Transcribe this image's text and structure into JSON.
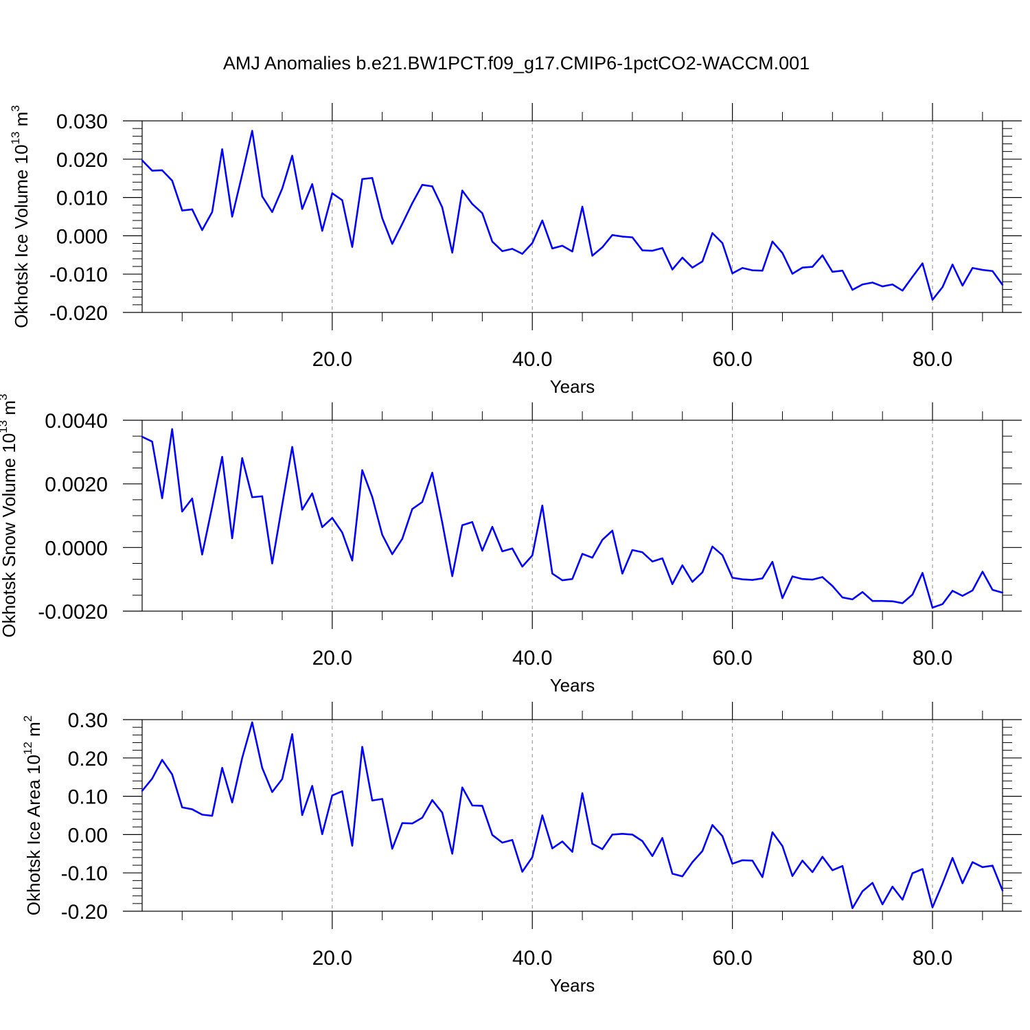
{
  "title": "AMJ Anomalies b.e21.BW1PCT.f09_g17.CMIP6-1pctCO2-WACCM.001",
  "colors": {
    "series": "#0000ff",
    "axis": "#000000",
    "grid": "#888888"
  },
  "chart_data": [
    {
      "type": "line",
      "title": "",
      "xlabel": "Years",
      "ylabel": {
        "text": "Okhotsk Ice Volume 10",
        "exp": "13",
        "unit": " m",
        "unit_exp": "3"
      },
      "xlim": [
        1,
        87
      ],
      "ylim": [
        -0.02,
        0.03
      ],
      "x_ticks": [
        20,
        40,
        60,
        80
      ],
      "x_tick_labels": [
        "20.0",
        "40.0",
        "60.0",
        "80.0"
      ],
      "y_ticks": [
        0.03,
        0.02,
        0.01,
        0.0,
        -0.01,
        -0.02
      ],
      "y_tick_labels": [
        "0.030",
        "0.020",
        "0.010",
        "0.000",
        "-0.010",
        "-0.020"
      ],
      "y_minor_step": 0.002,
      "grid": "vertical dashed at major x ticks",
      "series": [
        {
          "values": [
            0.0197,
            0.017,
            0.0171,
            0.0144,
            0.0066,
            0.0069,
            0.0015,
            0.0062,
            0.0226,
            0.005,
            0.016,
            0.0274,
            0.0103,
            0.0062,
            0.0123,
            0.0209,
            0.007,
            0.0135,
            0.0013,
            0.0111,
            0.0093,
            -0.0029,
            0.0148,
            0.0151,
            0.0046,
            -0.0021,
            0.0031,
            0.0085,
            0.0133,
            0.0129,
            0.0074,
            -0.0044,
            0.0118,
            0.0083,
            0.0059,
            -0.0015,
            -0.004,
            -0.0034,
            -0.0047,
            -0.0019,
            0.004,
            -0.0033,
            -0.0026,
            -0.0041,
            0.0076,
            -0.0052,
            -0.003,
            0.0002,
            -0.0002,
            -0.0004,
            -0.0038,
            -0.0039,
            -0.0032,
            -0.0088,
            -0.0057,
            -0.0083,
            -0.0067,
            0.0007,
            -0.0019,
            -0.0098,
            -0.0084,
            -0.009,
            -0.0091,
            -0.0015,
            -0.0045,
            -0.0099,
            -0.0083,
            -0.0081,
            -0.0051,
            -0.0094,
            -0.0091,
            -0.0141,
            -0.0127,
            -0.0122,
            -0.0132,
            -0.0127,
            -0.0143,
            -0.0107,
            -0.0072,
            -0.0167,
            -0.0134,
            -0.0075,
            -0.013,
            -0.0084,
            -0.0089,
            -0.0092,
            -0.0128
          ]
        }
      ]
    },
    {
      "type": "line",
      "title": "",
      "xlabel": "Years",
      "ylabel": {
        "text": "Okhotsk Snow Volume 10",
        "exp": "13",
        "unit": " m",
        "unit_exp": "3"
      },
      "xlim": [
        1,
        87
      ],
      "ylim": [
        -0.002,
        0.004
      ],
      "x_ticks": [
        20,
        40,
        60,
        80
      ],
      "x_tick_labels": [
        "20.0",
        "40.0",
        "60.0",
        "80.0"
      ],
      "y_ticks": [
        0.004,
        0.002,
        0.0,
        -0.002
      ],
      "y_tick_labels": [
        "0.0040",
        "0.0020",
        "0.0000",
        "-0.0020"
      ],
      "y_minor_step": 0.0005,
      "grid": "vertical dashed at major x ticks",
      "series": [
        {
          "values": [
            0.00348,
            0.00333,
            0.00155,
            0.00372,
            0.00113,
            0.00154,
            -0.00022,
            0.00128,
            0.00285,
            0.00029,
            0.00281,
            0.00158,
            0.00161,
            -0.0005,
            0.00134,
            0.00316,
            0.00119,
            0.0017,
            0.00064,
            0.00093,
            0.00047,
            -0.00041,
            0.00243,
            0.00159,
            0.0004,
            -0.00021,
            0.00027,
            0.00121,
            0.00143,
            0.00235,
            0.00078,
            -0.0009,
            0.0007,
            0.0008,
            -0.0001,
            0.00065,
            -0.00012,
            -3e-05,
            -0.0006,
            -0.00025,
            0.00132,
            -0.00082,
            -0.00103,
            -0.00099,
            -0.0002,
            -0.00032,
            0.00024,
            0.00053,
            -0.00082,
            -8e-05,
            -0.00015,
            -0.00044,
            -0.00034,
            -0.00115,
            -0.00056,
            -0.00108,
            -0.00078,
            3e-05,
            -0.00024,
            -0.00095,
            -0.001,
            -0.00102,
            -0.00097,
            -0.00045,
            -0.00159,
            -0.00091,
            -0.00099,
            -0.00101,
            -0.00093,
            -0.00121,
            -0.00157,
            -0.00163,
            -0.0014,
            -0.00168,
            -0.00168,
            -0.00169,
            -0.00175,
            -0.00148,
            -0.0008,
            -0.00189,
            -0.00178,
            -0.00136,
            -0.00152,
            -0.00135,
            -0.00076,
            -0.00133,
            -0.00142
          ]
        }
      ]
    },
    {
      "type": "line",
      "title": "",
      "xlabel": "Years",
      "ylabel": {
        "text": "Okhotsk Ice Area 10",
        "exp": "12",
        "unit": " m",
        "unit_exp": "2"
      },
      "xlim": [
        1,
        87
      ],
      "ylim": [
        -0.2,
        0.3
      ],
      "x_ticks": [
        20,
        40,
        60,
        80
      ],
      "x_tick_labels": [
        "20.0",
        "40.0",
        "60.0",
        "80.0"
      ],
      "y_ticks": [
        0.3,
        0.2,
        0.1,
        0.0,
        -0.1,
        -0.2
      ],
      "y_tick_labels": [
        "0.30",
        "0.20",
        "0.10",
        "0.00",
        "-0.10",
        "-0.20"
      ],
      "y_minor_step": 0.02,
      "grid": "vertical dashed at major x ticks",
      "series": [
        {
          "values": [
            0.114,
            0.146,
            0.195,
            0.157,
            0.071,
            0.066,
            0.052,
            0.049,
            0.174,
            0.084,
            0.2,
            0.293,
            0.174,
            0.111,
            0.145,
            0.262,
            0.051,
            0.127,
            0.001,
            0.102,
            0.113,
            -0.029,
            0.229,
            0.089,
            0.093,
            -0.037,
            0.03,
            0.029,
            0.044,
            0.09,
            0.057,
            -0.05,
            0.123,
            0.076,
            0.075,
            -0.001,
            -0.021,
            -0.014,
            -0.097,
            -0.059,
            0.05,
            -0.036,
            -0.018,
            -0.045,
            0.108,
            -0.024,
            -0.038,
            0.0,
            0.002,
            0.0,
            -0.017,
            -0.056,
            -0.009,
            -0.102,
            -0.109,
            -0.072,
            -0.043,
            0.025,
            -0.004,
            -0.076,
            -0.067,
            -0.068,
            -0.111,
            0.006,
            -0.03,
            -0.108,
            -0.068,
            -0.098,
            -0.058,
            -0.093,
            -0.082,
            -0.192,
            -0.148,
            -0.126,
            -0.182,
            -0.136,
            -0.17,
            -0.101,
            -0.09,
            -0.19,
            -0.128,
            -0.061,
            -0.127,
            -0.072,
            -0.085,
            -0.081,
            -0.146
          ]
        }
      ]
    }
  ]
}
